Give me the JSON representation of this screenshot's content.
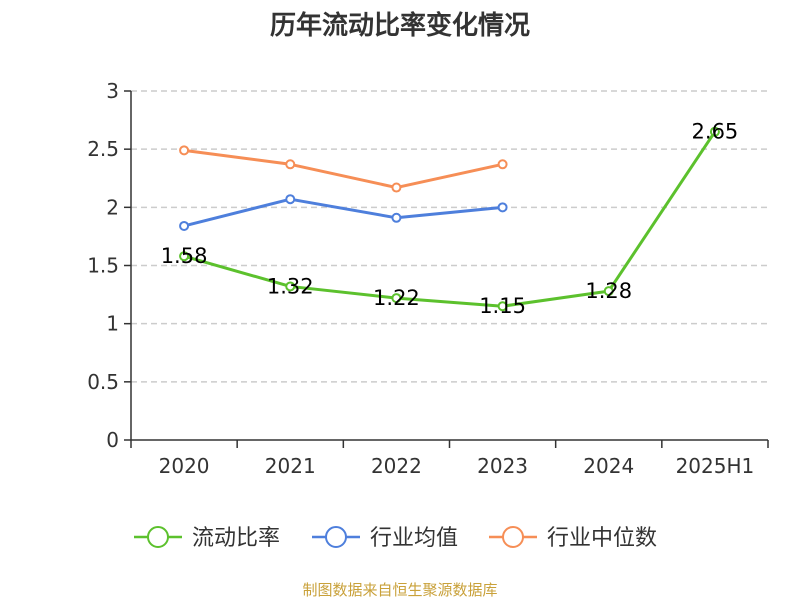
{
  "chart_data": {
    "type": "line",
    "title": "历年流动比率变化情况",
    "categories": [
      "2020",
      "2021",
      "2022",
      "2023",
      "2024",
      "2025H1"
    ],
    "y_ticks": [
      "0",
      "0.5",
      "1",
      "1.5",
      "2",
      "2.5",
      "3"
    ],
    "ylim": [
      0,
      3
    ],
    "grid": "horizontal dashed",
    "legend_position": "bottom",
    "series": [
      {
        "name": "流动比率",
        "color": "#5cc12d",
        "values": [
          1.58,
          1.32,
          1.22,
          1.15,
          1.28,
          2.65
        ],
        "labels": [
          "1.58",
          "1.32",
          "1.22",
          "1.15",
          "1.28",
          "2.65"
        ]
      },
      {
        "name": "行业均值",
        "color": "#4e7fdc",
        "values": [
          1.84,
          2.07,
          1.91,
          2.0,
          null,
          null
        ]
      },
      {
        "name": "行业中位数",
        "color": "#f68e56",
        "values": [
          2.49,
          2.37,
          2.17,
          2.37,
          null,
          null
        ]
      }
    ]
  },
  "source_text": "制图数据来自恒生聚源数据库",
  "colors": {
    "source": "#c9a13a",
    "axis": "#333333",
    "grid": "#cccccc"
  }
}
